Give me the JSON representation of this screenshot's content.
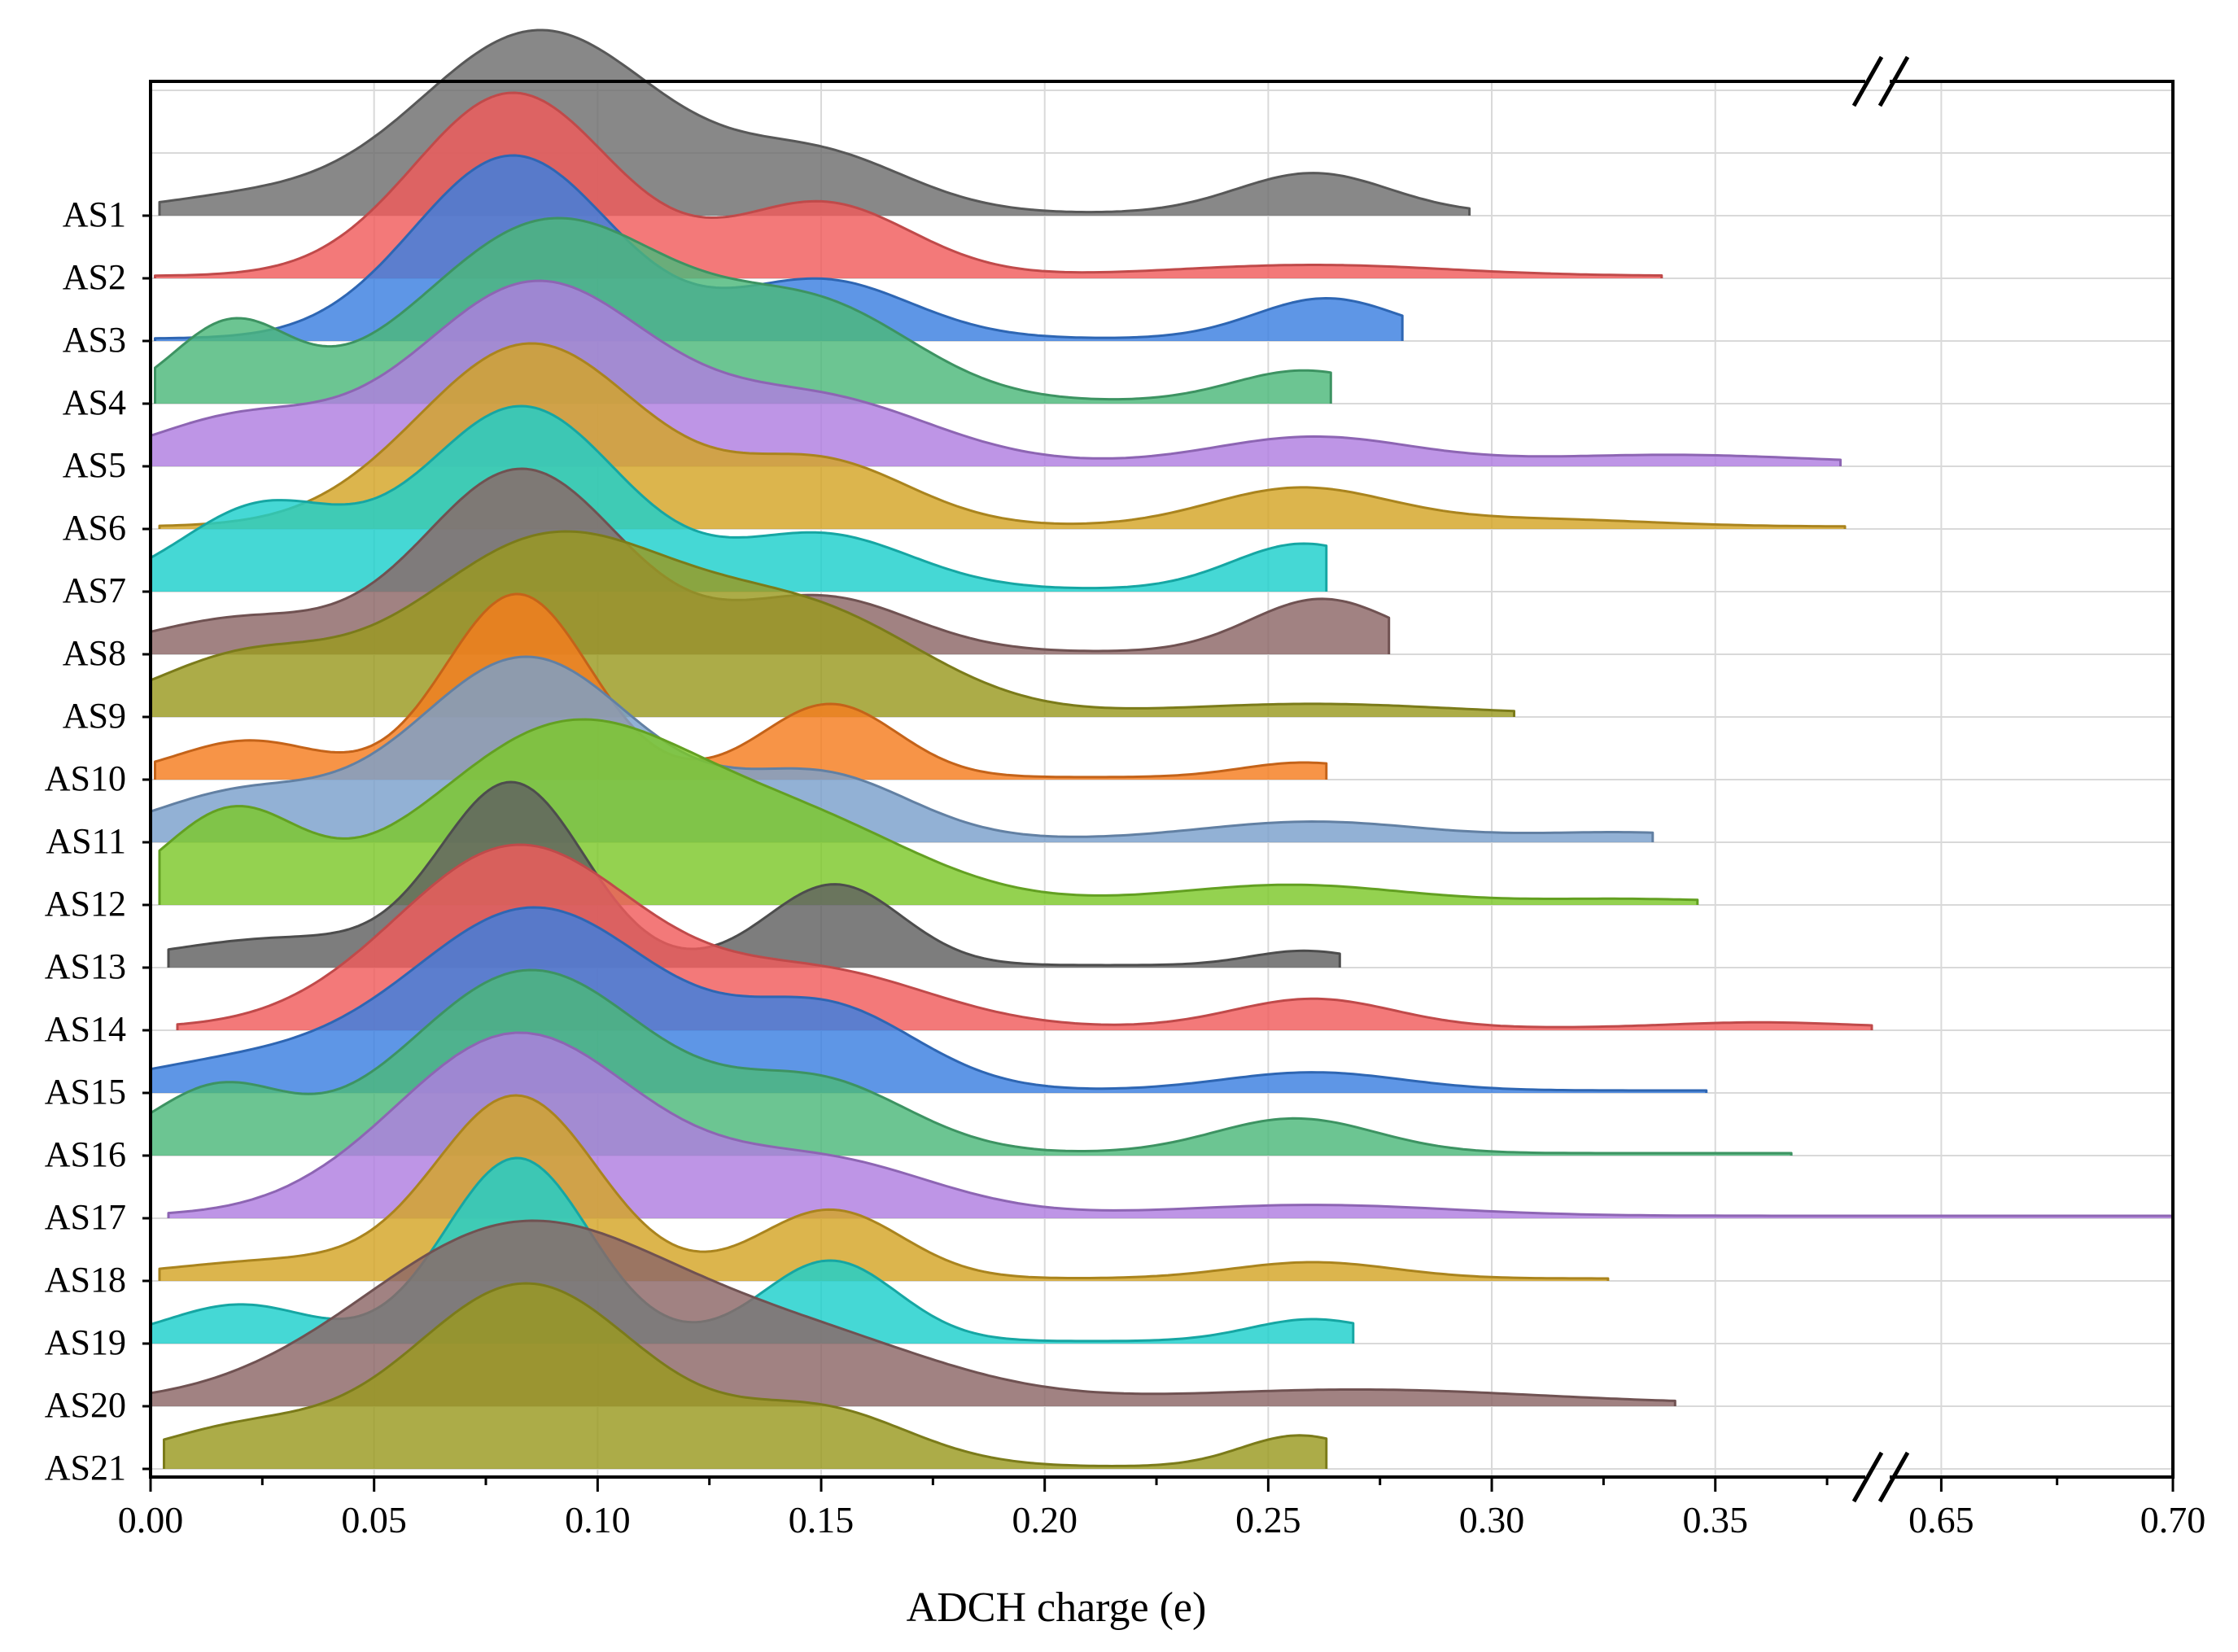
{
  "chart_data": {
    "type": "ridgeline",
    "title": "",
    "xlabel": "ADCH charge (e)",
    "ylabel": "",
    "xlim": [
      0.0,
      0.7
    ],
    "axis_break": [
      0.385,
      0.635
    ],
    "x_ticks": [
      "0.00",
      "0.05",
      "0.10",
      "0.15",
      "0.20",
      "0.25",
      "0.30",
      "0.35",
      "0.65",
      "0.70"
    ],
    "grid": true,
    "series": [
      {
        "name": "AS1",
        "color": "#6e6e6e",
        "x_min": 0.002,
        "x_max": 0.295,
        "components": [
          {
            "mu": 0.087,
            "sigma": 0.027,
            "w": 1.0
          },
          {
            "mu": 0.15,
            "sigma": 0.02,
            "w": 0.3
          },
          {
            "mu": 0.26,
            "sigma": 0.017,
            "w": 0.22
          },
          {
            "mu": 0.02,
            "sigma": 0.02,
            "w": 0.08
          }
        ]
      },
      {
        "name": "AS2",
        "color": "#f05c5c",
        "x_min": 0.001,
        "x_max": 0.338,
        "components": [
          {
            "mu": 0.081,
            "sigma": 0.022,
            "w": 1.0
          },
          {
            "mu": 0.15,
            "sigma": 0.02,
            "w": 0.4
          },
          {
            "mu": 0.26,
            "sigma": 0.03,
            "w": 0.06
          }
        ]
      },
      {
        "name": "AS3",
        "color": "#3a7fe0",
        "x_min": 0.001,
        "x_max": 0.28,
        "components": [
          {
            "mu": 0.081,
            "sigma": 0.022,
            "w": 1.0
          },
          {
            "mu": 0.15,
            "sigma": 0.02,
            "w": 0.32
          },
          {
            "mu": 0.263,
            "sigma": 0.016,
            "w": 0.22
          }
        ]
      },
      {
        "name": "AS4",
        "color": "#4cb87a",
        "x_min": 0.001,
        "x_max": 0.264,
        "components": [
          {
            "mu": 0.09,
            "sigma": 0.028,
            "w": 1.0
          },
          {
            "mu": 0.15,
            "sigma": 0.022,
            "w": 0.48
          },
          {
            "mu": 0.018,
            "sigma": 0.013,
            "w": 0.42
          },
          {
            "mu": 0.258,
            "sigma": 0.016,
            "w": 0.17
          }
        ]
      },
      {
        "name": "AS5",
        "color": "#b07ee0",
        "x_min": 0.0,
        "x_max": 0.378,
        "components": [
          {
            "mu": 0.086,
            "sigma": 0.026,
            "w": 1.0
          },
          {
            "mu": 0.15,
            "sigma": 0.025,
            "w": 0.35
          },
          {
            "mu": 0.02,
            "sigma": 0.02,
            "w": 0.25
          },
          {
            "mu": 0.26,
            "sigma": 0.022,
            "w": 0.15
          },
          {
            "mu": 0.34,
            "sigma": 0.03,
            "w": 0.05
          }
        ]
      },
      {
        "name": "AS6",
        "color": "#d4a526",
        "x_min": 0.002,
        "x_max": 0.379,
        "components": [
          {
            "mu": 0.085,
            "sigma": 0.025,
            "w": 1.0
          },
          {
            "mu": 0.15,
            "sigma": 0.02,
            "w": 0.35
          },
          {
            "mu": 0.257,
            "sigma": 0.02,
            "w": 0.21
          },
          {
            "mu": 0.31,
            "sigma": 0.025,
            "w": 0.04
          }
        ]
      },
      {
        "name": "AS7",
        "color": "#1ccfcc",
        "x_min": 0.0,
        "x_max": 0.263,
        "components": [
          {
            "mu": 0.083,
            "sigma": 0.022,
            "w": 1.0
          },
          {
            "mu": 0.15,
            "sigma": 0.02,
            "w": 0.3
          },
          {
            "mu": 0.025,
            "sigma": 0.018,
            "w": 0.45
          },
          {
            "mu": 0.258,
            "sigma": 0.016,
            "w": 0.25
          }
        ]
      },
      {
        "name": "AS8",
        "color": "#8c6666",
        "x_min": 0.0,
        "x_max": 0.277,
        "components": [
          {
            "mu": 0.083,
            "sigma": 0.022,
            "w": 1.0
          },
          {
            "mu": 0.15,
            "sigma": 0.02,
            "w": 0.3
          },
          {
            "mu": 0.02,
            "sigma": 0.02,
            "w": 0.18
          },
          {
            "mu": 0.262,
            "sigma": 0.016,
            "w": 0.29
          }
        ]
      },
      {
        "name": "AS9",
        "color": "#9a9a20",
        "x_min": 0.0,
        "x_max": 0.305,
        "components": [
          {
            "mu": 0.09,
            "sigma": 0.03,
            "w": 1.0
          },
          {
            "mu": 0.15,
            "sigma": 0.025,
            "w": 0.5
          },
          {
            "mu": 0.02,
            "sigma": 0.02,
            "w": 0.3
          },
          {
            "mu": 0.26,
            "sigma": 0.03,
            "w": 0.06
          }
        ]
      },
      {
        "name": "AS10",
        "color": "#f57c1f",
        "x_min": 0.001,
        "x_max": 0.263,
        "components": [
          {
            "mu": 0.082,
            "sigma": 0.016,
            "w": 1.0
          },
          {
            "mu": 0.152,
            "sigma": 0.015,
            "w": 0.4
          },
          {
            "mu": 0.022,
            "sigma": 0.016,
            "w": 0.2
          },
          {
            "mu": 0.258,
            "sigma": 0.014,
            "w": 0.08
          }
        ]
      },
      {
        "name": "AS11",
        "color": "#7aa0cc",
        "x_min": 0.0,
        "x_max": 0.336,
        "components": [
          {
            "mu": 0.084,
            "sigma": 0.025,
            "w": 1.0
          },
          {
            "mu": 0.15,
            "sigma": 0.02,
            "w": 0.35
          },
          {
            "mu": 0.02,
            "sigma": 0.02,
            "w": 0.25
          },
          {
            "mu": 0.26,
            "sigma": 0.025,
            "w": 0.1
          },
          {
            "mu": 0.33,
            "sigma": 0.02,
            "w": 0.04
          }
        ]
      },
      {
        "name": "AS12",
        "color": "#7cc82a",
        "x_min": 0.002,
        "x_max": 0.346,
        "components": [
          {
            "mu": 0.094,
            "sigma": 0.03,
            "w": 1.0
          },
          {
            "mu": 0.15,
            "sigma": 0.025,
            "w": 0.35
          },
          {
            "mu": 0.018,
            "sigma": 0.015,
            "w": 0.5
          },
          {
            "mu": 0.255,
            "sigma": 0.025,
            "w": 0.1
          },
          {
            "mu": 0.33,
            "sigma": 0.02,
            "w": 0.02
          }
        ]
      },
      {
        "name": "AS13",
        "color": "#606060",
        "x_min": 0.004,
        "x_max": 0.266,
        "components": [
          {
            "mu": 0.081,
            "sigma": 0.016,
            "w": 1.0
          },
          {
            "mu": 0.153,
            "sigma": 0.015,
            "w": 0.45
          },
          {
            "mu": 0.03,
            "sigma": 0.025,
            "w": 0.15
          },
          {
            "mu": 0.258,
            "sigma": 0.012,
            "w": 0.08
          }
        ]
      },
      {
        "name": "AS14",
        "color": "#f05c5c",
        "x_min": 0.006,
        "x_max": 0.387,
        "components": [
          {
            "mu": 0.082,
            "sigma": 0.027,
            "w": 1.0
          },
          {
            "mu": 0.15,
            "sigma": 0.025,
            "w": 0.3
          },
          {
            "mu": 0.26,
            "sigma": 0.018,
            "w": 0.16
          },
          {
            "mu": 0.36,
            "sigma": 0.02,
            "w": 0.03
          }
        ]
      },
      {
        "name": "AS15",
        "color": "#3a7fe0",
        "x_min": 0.0,
        "x_max": 0.348,
        "components": [
          {
            "mu": 0.086,
            "sigma": 0.028,
            "w": 1.0
          },
          {
            "mu": 0.152,
            "sigma": 0.02,
            "w": 0.43
          },
          {
            "mu": 0.02,
            "sigma": 0.025,
            "w": 0.15
          },
          {
            "mu": 0.26,
            "sigma": 0.02,
            "w": 0.1
          }
        ]
      },
      {
        "name": "AS16",
        "color": "#4cb87a",
        "x_min": 0.0,
        "x_max": 0.367,
        "components": [
          {
            "mu": 0.085,
            "sigma": 0.027,
            "w": 1.0
          },
          {
            "mu": 0.15,
            "sigma": 0.02,
            "w": 0.37
          },
          {
            "mu": 0.015,
            "sigma": 0.015,
            "w": 0.35
          },
          {
            "mu": 0.256,
            "sigma": 0.018,
            "w": 0.19
          }
        ]
      },
      {
        "name": "AS17",
        "color": "#b07ee0",
        "x_min": 0.004,
        "x_max": 0.7,
        "components": [
          {
            "mu": 0.082,
            "sigma": 0.027,
            "w": 1.0
          },
          {
            "mu": 0.15,
            "sigma": 0.025,
            "w": 0.3
          },
          {
            "mu": 0.26,
            "sigma": 0.03,
            "w": 0.06
          }
        ]
      },
      {
        "name": "AS18",
        "color": "#d4a526",
        "x_min": 0.002,
        "x_max": 0.326,
        "components": [
          {
            "mu": 0.082,
            "sigma": 0.018,
            "w": 1.0
          },
          {
            "mu": 0.152,
            "sigma": 0.016,
            "w": 0.38
          },
          {
            "mu": 0.03,
            "sigma": 0.025,
            "w": 0.1
          },
          {
            "mu": 0.26,
            "sigma": 0.018,
            "w": 0.09
          }
        ]
      },
      {
        "name": "AS19",
        "color": "#1ccfcc",
        "x_min": 0.0,
        "x_max": 0.269,
        "components": [
          {
            "mu": 0.082,
            "sigma": 0.016,
            "w": 1.0
          },
          {
            "mu": 0.152,
            "sigma": 0.015,
            "w": 0.44
          },
          {
            "mu": 0.02,
            "sigma": 0.016,
            "w": 0.2
          },
          {
            "mu": 0.26,
            "sigma": 0.014,
            "w": 0.12
          }
        ]
      },
      {
        "name": "AS20",
        "color": "#8c6666",
        "x_min": 0.0,
        "x_max": 0.341,
        "components": [
          {
            "mu": 0.083,
            "sigma": 0.035,
            "w": 1.0
          },
          {
            "mu": 0.15,
            "sigma": 0.03,
            "w": 0.3
          },
          {
            "mu": 0.27,
            "sigma": 0.04,
            "w": 0.08
          }
        ]
      },
      {
        "name": "AS21",
        "color": "#9a9a20",
        "x_min": 0.003,
        "x_max": 0.263,
        "components": [
          {
            "mu": 0.084,
            "sigma": 0.026,
            "w": 1.0
          },
          {
            "mu": 0.15,
            "sigma": 0.02,
            "w": 0.3
          },
          {
            "mu": 0.02,
            "sigma": 0.02,
            "w": 0.2
          },
          {
            "mu": 0.257,
            "sigma": 0.013,
            "w": 0.17
          }
        ]
      }
    ]
  }
}
